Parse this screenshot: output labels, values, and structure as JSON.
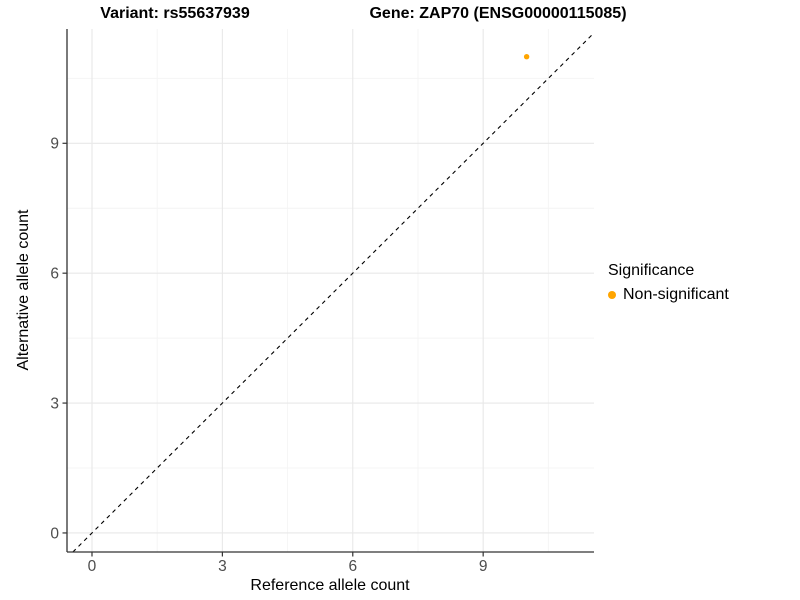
{
  "header": {
    "variant_title": "Variant: rs55637939",
    "gene_title": "Gene: ZAP70 (ENSG00000115085)"
  },
  "legend": {
    "title": "Significance",
    "items": [
      {
        "label": "Non-significant",
        "color": "#FFA500"
      }
    ]
  },
  "chart_data": {
    "type": "scatter",
    "title": "Variant: rs55637939 | Gene: ZAP70 (ENSG00000115085)",
    "xlabel": "Reference allele count",
    "ylabel": "Alternative allele count",
    "xlim": [
      -0.575,
      11.55
    ],
    "ylim": [
      -0.44,
      11.64
    ],
    "x_ticks": [
      0,
      3,
      6,
      9
    ],
    "y_ticks": [
      0,
      3,
      6,
      9
    ],
    "x_minor_ticks": [
      1.5,
      4.5,
      7.5,
      10.5
    ],
    "y_minor_ticks": [
      1.5,
      4.5,
      7.5,
      10.5
    ],
    "grid": "major+minor",
    "legend_position": "right",
    "reference_line": {
      "kind": "identity",
      "slope": 1,
      "intercept": 0,
      "linetype": "dashed",
      "color": "#000000"
    },
    "series": [
      {
        "name": "Non-significant",
        "color": "#FFA500",
        "points": [
          {
            "x": 10,
            "y": 11
          }
        ]
      }
    ],
    "colors": {
      "major_grid": "#E8E8E8",
      "minor_grid": "#F4F4F4",
      "axis_line": "#333333",
      "tick_label": "#4D4D4D"
    }
  }
}
